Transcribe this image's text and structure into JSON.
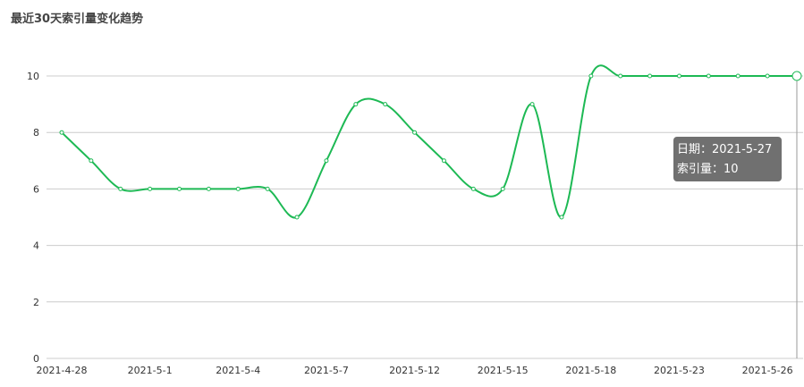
{
  "chart_data": {
    "type": "line",
    "title": "最近30天索引量变化趋势",
    "x_tick_labels": [
      "2021-4-28",
      "2021-5-1",
      "2021-5-4",
      "2021-5-7",
      "2021-5-12",
      "2021-5-15",
      "2021-5-18",
      "2021-5-23",
      "2021-5-26"
    ],
    "values": [
      8,
      7,
      6,
      6,
      6,
      6,
      6,
      6,
      5,
      7,
      9,
      9,
      8,
      7,
      6,
      6,
      9,
      5,
      10,
      10,
      10,
      10,
      10,
      10,
      10,
      10
    ],
    "y_ticks": [
      0,
      2,
      4,
      6,
      8,
      10
    ],
    "ylim": [
      0,
      10
    ],
    "grid": true,
    "smooth": true,
    "line_color": "#1db954",
    "tooltip": {
      "date_label": "日期：",
      "date": "2021-5-27",
      "value_label": "索引量：",
      "value": "10"
    }
  }
}
